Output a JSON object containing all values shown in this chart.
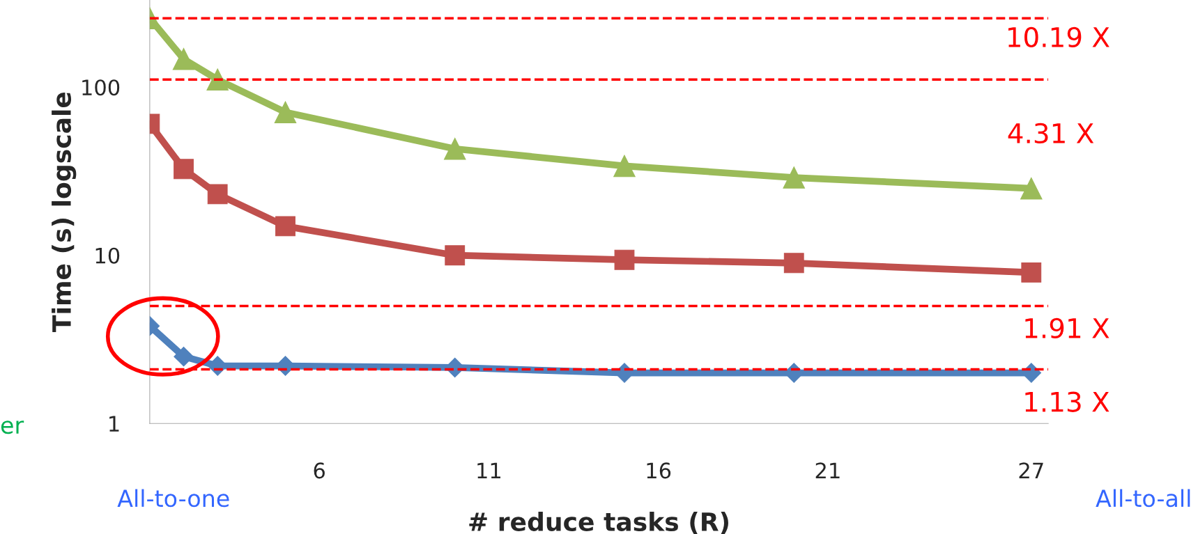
{
  "chart_data": {
    "type": "line",
    "xlabel": "# reduce tasks (R)",
    "ylabel": "Time (s) logscale",
    "x": [
      1,
      2,
      3,
      5,
      10,
      15,
      20,
      27
    ],
    "series": [
      {
        "color": "#9bbb59",
        "marker": "triangle",
        "values": [
          257,
          147,
          111,
          71,
          43,
          34,
          29,
          25
        ]
      },
      {
        "color": "#c0504d",
        "marker": "square",
        "values": [
          60.5,
          32.6,
          23.1,
          14.9,
          10,
          9.4,
          9.0,
          7.9
        ]
      },
      {
        "color": "#4f81bd",
        "marker": "diamond",
        "values": [
          3.8,
          2.5,
          2.2,
          2.2,
          2.15,
          2.0,
          2.0,
          2.0
        ]
      }
    ],
    "log": "y",
    "xlim": [
      1,
      27.5
    ],
    "ylim": [
      1,
      330
    ],
    "xticks": [
      6,
      11,
      16,
      21,
      27
    ],
    "yticks": [
      1,
      10,
      100
    ],
    "grid": false,
    "legend": false,
    "line_style": "solid",
    "ref_lines": [
      {
        "axis": "y",
        "value": 257,
        "color": "#ff0000",
        "line_style": "dashed"
      },
      {
        "axis": "y",
        "value": 111,
        "color": "#ff0000",
        "line_style": "dashed"
      },
      {
        "axis": "y",
        "value": 5,
        "color": "#ff0000",
        "line_style": "dashed"
      },
      {
        "axis": "y",
        "value": 2.1,
        "color": "#ff0000",
        "line_style": "dashed"
      }
    ],
    "annotations": [
      "10.19 X",
      "4.31 X",
      "1.91 X",
      "1.13 X",
      "er",
      "All-to-one",
      "All-to-all"
    ]
  }
}
